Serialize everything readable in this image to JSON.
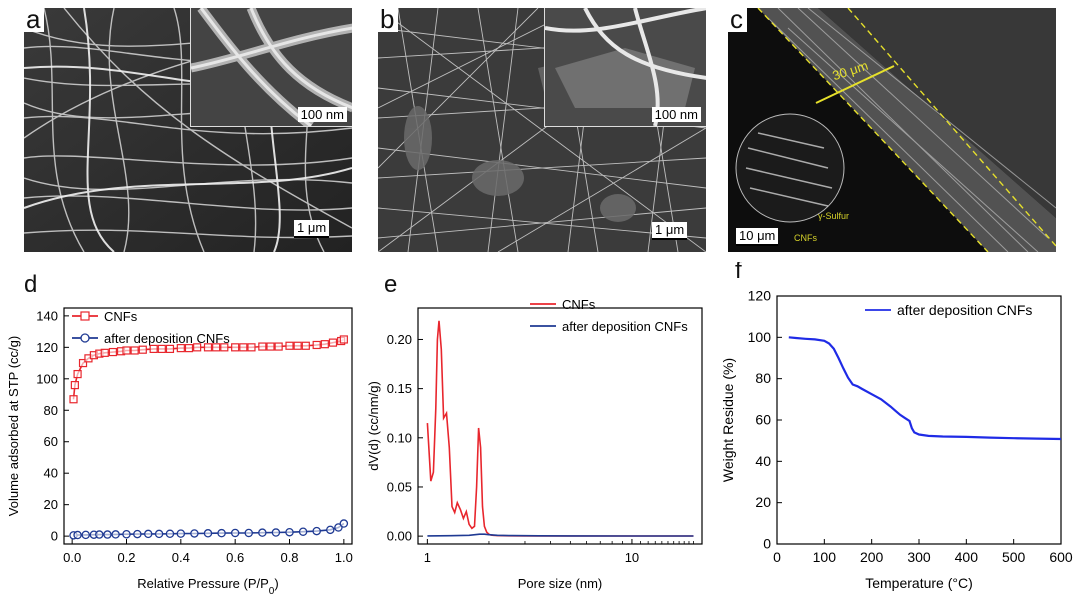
{
  "panels": {
    "a": {
      "letter": "a",
      "scale_main": "1 μm",
      "scale_inset": "100 nm"
    },
    "b": {
      "letter": "b",
      "scale_main": "1 μm",
      "scale_inset": "100 nm"
    },
    "c": {
      "letter": "c",
      "scale_main": "10 μm",
      "thickness": "30 μm",
      "label_cnfs": "CNFs",
      "label_sulfur": "γ-Sulfur"
    },
    "d": {
      "letter": "d"
    },
    "e": {
      "letter": "e"
    },
    "f": {
      "letter": "f"
    }
  },
  "colors": {
    "red": "#e8262d",
    "blue": "#1f3a93",
    "blue_f": "#1f2be6",
    "yellow": "#e6e02b"
  },
  "chart_data": [
    {
      "id": "d",
      "type": "line",
      "xlabel": "Relative Pressure (P/P",
      "xlabel_sub": "0",
      "xlabel_end": ")",
      "ylabel": "Volume adsorbed at STP (cc/g)",
      "xlim": [
        -0.03,
        1.03
      ],
      "ylim": [
        -5,
        145
      ],
      "xticks": [
        0.0,
        0.2,
        0.4,
        0.6,
        0.8,
        1.0
      ],
      "xtick_labels": [
        "0.0",
        "0.2",
        "0.4",
        "0.6",
        "0.8",
        "1.0"
      ],
      "yticks": [
        0,
        20,
        40,
        60,
        80,
        100,
        120,
        140
      ],
      "ytick_labels": [
        "0",
        "20",
        "40",
        "60",
        "80",
        "100",
        "120",
        "140"
      ],
      "legend": "top-left",
      "series": [
        {
          "name": "CNFs",
          "color": "#e8262d",
          "marker": "square",
          "x": [
            0.005,
            0.01,
            0.02,
            0.04,
            0.06,
            0.08,
            0.1,
            0.12,
            0.15,
            0.18,
            0.2,
            0.23,
            0.26,
            0.3,
            0.33,
            0.36,
            0.4,
            0.43,
            0.46,
            0.5,
            0.53,
            0.56,
            0.6,
            0.63,
            0.66,
            0.7,
            0.73,
            0.76,
            0.8,
            0.83,
            0.86,
            0.9,
            0.93,
            0.96,
            0.99,
            1.0
          ],
          "y": [
            87,
            96,
            103,
            110,
            113,
            115,
            116,
            116.5,
            117,
            117.5,
            118,
            118,
            118.5,
            119,
            119,
            119,
            119.5,
            119.5,
            120,
            120,
            120,
            120,
            120,
            120,
            120,
            120.5,
            120.5,
            120.5,
            121,
            121,
            121,
            121.5,
            122,
            123,
            124,
            125
          ]
        },
        {
          "name": "after deposition CNFs",
          "color": "#1f3a93",
          "marker": "circle",
          "x": [
            0.005,
            0.02,
            0.05,
            0.08,
            0.1,
            0.13,
            0.16,
            0.2,
            0.24,
            0.28,
            0.32,
            0.36,
            0.4,
            0.45,
            0.5,
            0.55,
            0.6,
            0.65,
            0.7,
            0.75,
            0.8,
            0.85,
            0.9,
            0.95,
            0.98,
            1.0
          ],
          "y": [
            0.5,
            0.7,
            0.8,
            0.9,
            1.0,
            1.0,
            1.1,
            1.2,
            1.3,
            1.4,
            1.4,
            1.5,
            1.6,
            1.7,
            1.8,
            1.9,
            2.0,
            2.0,
            2.2,
            2.3,
            2.5,
            2.8,
            3.2,
            4.0,
            5.5,
            8.0
          ]
        }
      ]
    },
    {
      "id": "e",
      "type": "line",
      "xlabel": "Pore size (nm)",
      "ylabel": "dV(d) (cc/nm/g)",
      "xscale": "log",
      "xlim": [
        0.9,
        22
      ],
      "ylim": [
        -0.008,
        0.232
      ],
      "xticks": [
        1,
        10
      ],
      "xtick_labels": [
        "1",
        "10"
      ],
      "yticks": [
        0.0,
        0.05,
        0.1,
        0.15,
        0.2
      ],
      "ytick_labels": [
        "0.00",
        "0.05",
        "0.10",
        "0.15",
        "0.20"
      ],
      "legend": "top-right",
      "series": [
        {
          "name": "CNFs",
          "color": "#e8262d",
          "x": [
            1.0,
            1.04,
            1.07,
            1.1,
            1.12,
            1.14,
            1.17,
            1.2,
            1.24,
            1.28,
            1.32,
            1.36,
            1.4,
            1.45,
            1.5,
            1.55,
            1.6,
            1.65,
            1.7,
            1.74,
            1.78,
            1.82,
            1.86,
            1.9,
            1.95,
            2.0,
            2.05,
            2.1,
            2.2,
            2.5,
            3,
            5,
            10,
            20
          ],
          "y": [
            0.115,
            0.056,
            0.065,
            0.13,
            0.2,
            0.219,
            0.19,
            0.12,
            0.125,
            0.09,
            0.03,
            0.024,
            0.034,
            0.027,
            0.018,
            0.025,
            0.012,
            0.008,
            0.01,
            0.05,
            0.11,
            0.09,
            0.03,
            0.01,
            0.004,
            0.002,
            0.001,
            0.0008,
            0.0005,
            0.0003,
            0.0002,
            0.0001,
            0.0001,
            0.0001
          ]
        },
        {
          "name": "after deposition CNFs",
          "color": "#1f3a93",
          "x": [
            1.0,
            1.3,
            1.6,
            1.8,
            1.9,
            2.0,
            2.2,
            2.6,
            3.5,
            5,
            10,
            20
          ],
          "y": [
            0.0002,
            0.0004,
            0.0008,
            0.002,
            0.002,
            0.0015,
            0.0008,
            0.0005,
            0.0003,
            0.0002,
            0.0001,
            0.0001
          ]
        }
      ]
    },
    {
      "id": "f",
      "type": "line",
      "xlabel": "Temperature (°C)",
      "ylabel": "Weight Residue (%)",
      "xlim": [
        0,
        600
      ],
      "ylim": [
        0,
        120
      ],
      "xticks": [
        0,
        100,
        200,
        300,
        400,
        500,
        600
      ],
      "xtick_labels": [
        "0",
        "100",
        "200",
        "300",
        "400",
        "500",
        "600"
      ],
      "yticks": [
        0,
        20,
        40,
        60,
        80,
        100,
        120
      ],
      "ytick_labels": [
        "0",
        "20",
        "40",
        "60",
        "80",
        "100",
        "120"
      ],
      "legend": "top-right",
      "series": [
        {
          "name": "after deposition CNFs",
          "color": "#1f2be6",
          "x": [
            25,
            40,
            60,
            80,
            100,
            110,
            120,
            130,
            140,
            150,
            160,
            170,
            180,
            200,
            220,
            240,
            250,
            260,
            270,
            280,
            285,
            290,
            300,
            320,
            350,
            400,
            450,
            500,
            550,
            600
          ],
          "y": [
            100,
            99.7,
            99.3,
            99,
            98.3,
            97,
            94.5,
            90,
            85,
            80.5,
            77.2,
            76.3,
            75,
            72.5,
            70,
            66.5,
            64.5,
            62.5,
            61,
            59.5,
            56,
            54,
            53,
            52.3,
            52,
            51.8,
            51.5,
            51.2,
            51,
            50.8
          ]
        }
      ]
    }
  ]
}
